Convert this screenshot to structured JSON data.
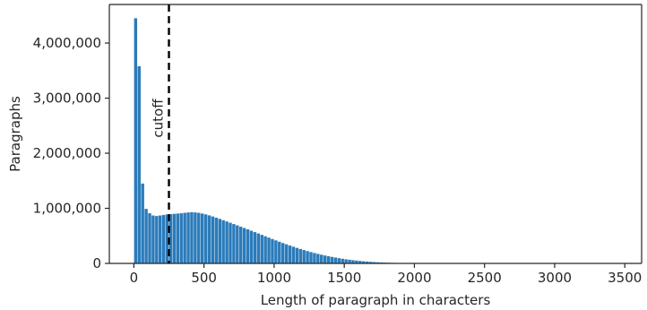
{
  "chart_data": {
    "type": "bar",
    "title": "",
    "xlabel": "Length of paragraph in characters",
    "ylabel": "Paragraphs",
    "xlim": [
      -175,
      3620
    ],
    "ylim": [
      0,
      4700000
    ],
    "grid": false,
    "legend": "none",
    "bar_color": "#2b7bba",
    "bin_width": 25,
    "x": [
      12.5,
      37.5,
      62.5,
      87.5,
      112.5,
      137.5,
      162.5,
      187.5,
      212.5,
      237.5,
      262.5,
      287.5,
      312.5,
      337.5,
      362.5,
      387.5,
      412.5,
      437.5,
      462.5,
      487.5,
      512.5,
      537.5,
      562.5,
      587.5,
      612.5,
      637.5,
      662.5,
      687.5,
      712.5,
      737.5,
      762.5,
      787.5,
      812.5,
      837.5,
      862.5,
      887.5,
      912.5,
      937.5,
      962.5,
      987.5,
      1012.5,
      1037.5,
      1062.5,
      1087.5,
      1112.5,
      1137.5,
      1162.5,
      1187.5,
      1212.5,
      1237.5,
      1262.5,
      1287.5,
      1312.5,
      1337.5,
      1362.5,
      1387.5,
      1412.5,
      1437.5,
      1462.5,
      1487.5,
      1512.5,
      1537.5,
      1562.5,
      1587.5,
      1612.5,
      1637.5,
      1662.5,
      1687.5,
      1712.5,
      1737.5,
      1762.5,
      1787.5,
      1812.5,
      1837.5,
      1862.5,
      1887.5,
      1912.5,
      1937.5,
      1962.5,
      1987.5,
      2012.5,
      2037.5,
      2062.5,
      2087.5,
      2112.5,
      2137.5,
      2162.5,
      2187.5,
      2212.5,
      2237.5,
      2262.5,
      2287.5,
      2312.5,
      2337.5,
      2362.5,
      2387.5
    ],
    "values": [
      4450000,
      3580000,
      1450000,
      990000,
      910000,
      870000,
      860000,
      870000,
      880000,
      890000,
      895000,
      900000,
      905000,
      910000,
      918000,
      925000,
      930000,
      925000,
      918000,
      905000,
      890000,
      872000,
      852000,
      830000,
      808000,
      785000,
      762000,
      738000,
      714000,
      690000,
      666000,
      642000,
      618000,
      593000,
      568000,
      543000,
      518000,
      493000,
      468000,
      443000,
      418000,
      394000,
      370000,
      347000,
      325000,
      303000,
      282000,
      262000,
      243000,
      224000,
      206000,
      189000,
      173000,
      158000,
      144000,
      130000,
      118000,
      106000,
      95000,
      85000,
      75000,
      67000,
      59000,
      52000,
      45000,
      39000,
      34000,
      29000,
      25000,
      21000,
      18000,
      15000,
      12500,
      10500,
      8800,
      7300,
      6000,
      5000,
      4100,
      3400,
      2800,
      2300,
      1900,
      1500,
      1200,
      1000,
      800,
      650,
      500,
      400,
      320,
      250,
      200,
      150,
      110,
      80
    ],
    "xticks": [
      0,
      500,
      1000,
      1500,
      2000,
      2500,
      3000,
      3500
    ],
    "xtick_labels": [
      "0",
      "500",
      "1000",
      "1500",
      "2000",
      "2500",
      "3000",
      "3500"
    ],
    "yticks": [
      0,
      1000000,
      2000000,
      3000000,
      4000000
    ],
    "ytick_labels": [
      "0",
      "1,000,000",
      "2,000,000",
      "3,000,000",
      "4,000,000"
    ],
    "vline": {
      "x": 250,
      "label": "cutoff",
      "style": "dashed",
      "color": "#000000"
    }
  }
}
